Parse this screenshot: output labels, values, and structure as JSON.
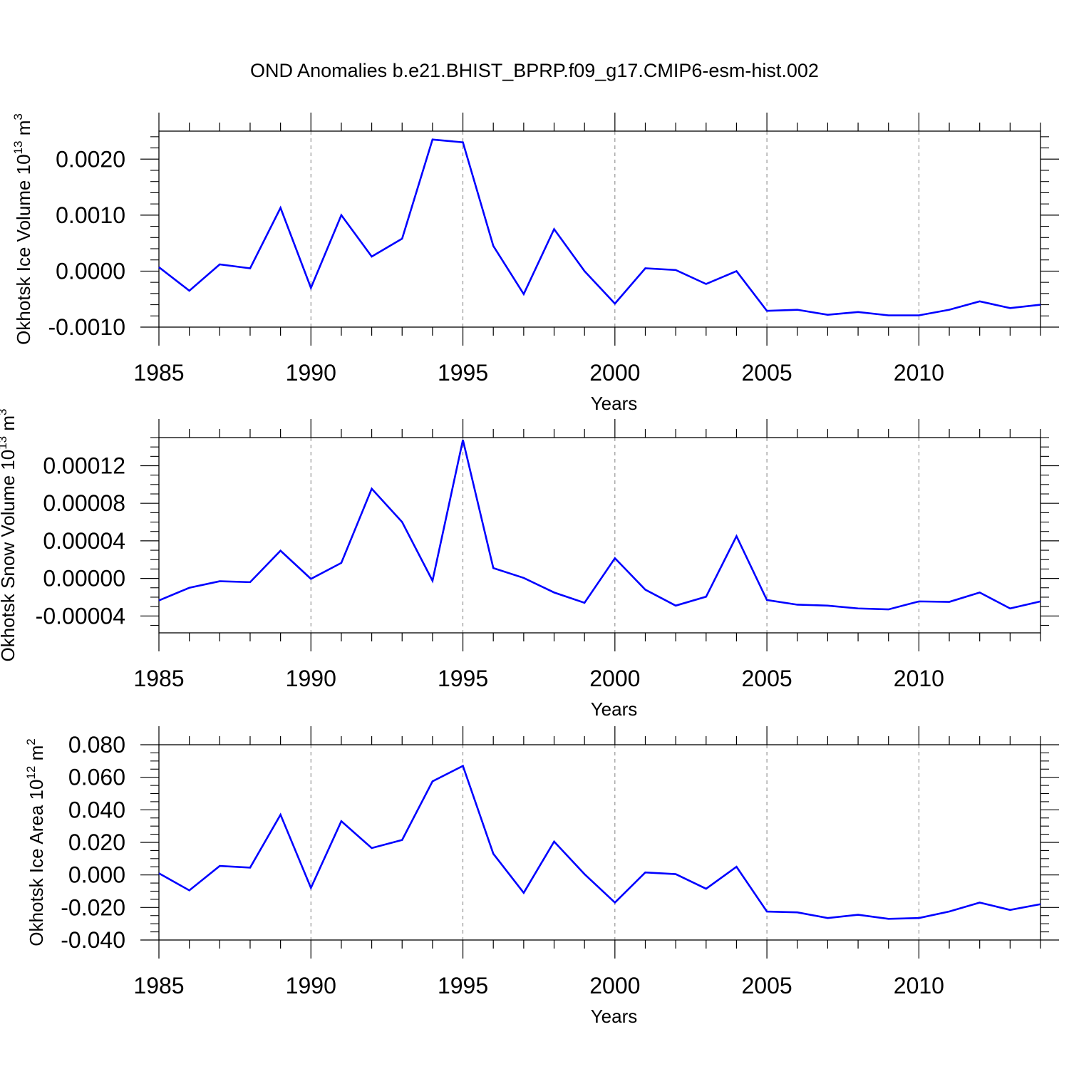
{
  "title": "OND Anomalies b.e21.BHIST_BPRP.f09_g17.CMIP6-esm-hist.002",
  "colors": {
    "series": "#0000ff",
    "axis": "#000000",
    "gridline": "#808080",
    "background": "#ffffff"
  },
  "chart_data": [
    {
      "type": "line",
      "ylabel": "Okhotsk Ice Volume 10",
      "ylabel_exp": "13",
      "ylabel_unit": " m",
      "ylabel_unit_exp": "3",
      "xlabel": "Years",
      "xlim": [
        1985,
        2014
      ],
      "ylim": [
        -0.001,
        0.0025
      ],
      "xticks": [
        1985,
        1990,
        1995,
        2000,
        2005,
        2010
      ],
      "xtick_labels": [
        "1985",
        "1990",
        "1995",
        "2000",
        "2005",
        "2010"
      ],
      "yticks": [
        -0.001,
        0.0,
        0.001,
        0.002
      ],
      "ytick_labels": [
        "-0.0010",
        "0.0000",
        "0.0010",
        "0.0020"
      ],
      "yminor_step": 0.0002,
      "grid": "vertical-dashed",
      "x": [
        1985,
        1986,
        1987,
        1988,
        1989,
        1990,
        1991,
        1992,
        1993,
        1994,
        1995,
        1996,
        1997,
        1998,
        1999,
        2000,
        2001,
        2002,
        2003,
        2004,
        2005,
        2006,
        2007,
        2008,
        2009,
        2010,
        2011,
        2012,
        2013,
        2014
      ],
      "values": [
        7e-05,
        -0.00035,
        0.00012,
        5e-05,
        0.00113,
        -0.0003,
        0.001,
        0.00026,
        0.00058,
        0.00235,
        0.0023,
        0.00045,
        -0.00041,
        0.00075,
        0.0,
        -0.00058,
        5e-05,
        2e-05,
        -0.00023,
        0.0,
        -0.00071,
        -0.00069,
        -0.00078,
        -0.00073,
        -0.00079,
        -0.00079,
        -0.00069,
        -0.00054,
        -0.00066,
        -0.0006
      ]
    },
    {
      "type": "line",
      "ylabel": "Okhotsk Snow Volume 10",
      "ylabel_exp": "13",
      "ylabel_unit": " m",
      "ylabel_unit_exp": "3",
      "xlabel": "Years",
      "xlim": [
        1985,
        2014
      ],
      "ylim": [
        -5.8e-05,
        0.00015
      ],
      "xticks": [
        1985,
        1990,
        1995,
        2000,
        2005,
        2010
      ],
      "xtick_labels": [
        "1985",
        "1990",
        "1995",
        "2000",
        "2005",
        "2010"
      ],
      "yticks": [
        -4e-05,
        0.0,
        4e-05,
        8e-05,
        0.00012
      ],
      "ytick_labels": [
        "-0.00004",
        "0.00000",
        "0.00004",
        "0.00008",
        "0.00012"
      ],
      "yminor_step": 1e-05,
      "grid": "vertical-dashed",
      "x": [
        1985,
        1986,
        1987,
        1988,
        1989,
        1990,
        1991,
        1992,
        1993,
        1994,
        1995,
        1996,
        1997,
        1998,
        1999,
        2000,
        2001,
        2002,
        2003,
        2004,
        2005,
        2006,
        2007,
        2008,
        2009,
        2010,
        2011,
        2012,
        2013,
        2014
      ],
      "values": [
        -2.35e-05,
        -1e-05,
        -3e-06,
        -4e-06,
        2.95e-05,
        -5e-07,
        1.65e-05,
        9.55e-05,
        6e-05,
        -2.5e-06,
        0.0001475,
        1.1e-05,
        5e-07,
        -1.5e-05,
        -2.6e-05,
        2.15e-05,
        -1.2e-05,
        -2.9e-05,
        -1.95e-05,
        4.5e-05,
        -2.3e-05,
        -2.8e-05,
        -2.9e-05,
        -3.2e-05,
        -3.3e-05,
        -2.45e-05,
        -2.5e-05,
        -1.5e-05,
        -3.2e-05,
        -2.45e-05
      ]
    },
    {
      "type": "line",
      "ylabel": "Okhotsk Ice Area 10",
      "ylabel_exp": "12",
      "ylabel_unit": " m",
      "ylabel_unit_exp": "2",
      "xlabel": "Years",
      "xlim": [
        1985,
        2014
      ],
      "ylim": [
        -0.04,
        0.08
      ],
      "xticks": [
        1985,
        1990,
        1995,
        2000,
        2005,
        2010
      ],
      "xtick_labels": [
        "1985",
        "1990",
        "1995",
        "2000",
        "2005",
        "2010"
      ],
      "yticks": [
        -0.04,
        -0.02,
        0.0,
        0.02,
        0.04,
        0.06,
        0.08
      ],
      "ytick_labels": [
        "-0.040",
        "-0.020",
        "0.000",
        "0.020",
        "0.040",
        "0.060",
        "0.080"
      ],
      "yminor_step": 0.005,
      "grid": "vertical-dashed",
      "x": [
        1985,
        1986,
        1987,
        1988,
        1989,
        1990,
        1991,
        1992,
        1993,
        1994,
        1995,
        1996,
        1997,
        1998,
        1999,
        2000,
        2001,
        2002,
        2003,
        2004,
        2005,
        2006,
        2007,
        2008,
        2009,
        2010,
        2011,
        2012,
        2013,
        2014
      ],
      "values": [
        0.001,
        -0.0095,
        0.0055,
        0.0045,
        0.037,
        -0.008,
        0.033,
        0.0165,
        0.0215,
        0.0575,
        0.067,
        0.013,
        -0.011,
        0.0205,
        0.0005,
        -0.017,
        0.0015,
        0.0005,
        -0.0085,
        0.005,
        -0.0225,
        -0.023,
        -0.0265,
        -0.0245,
        -0.027,
        -0.0265,
        -0.0225,
        -0.017,
        -0.0215,
        -0.018
      ]
    }
  ]
}
